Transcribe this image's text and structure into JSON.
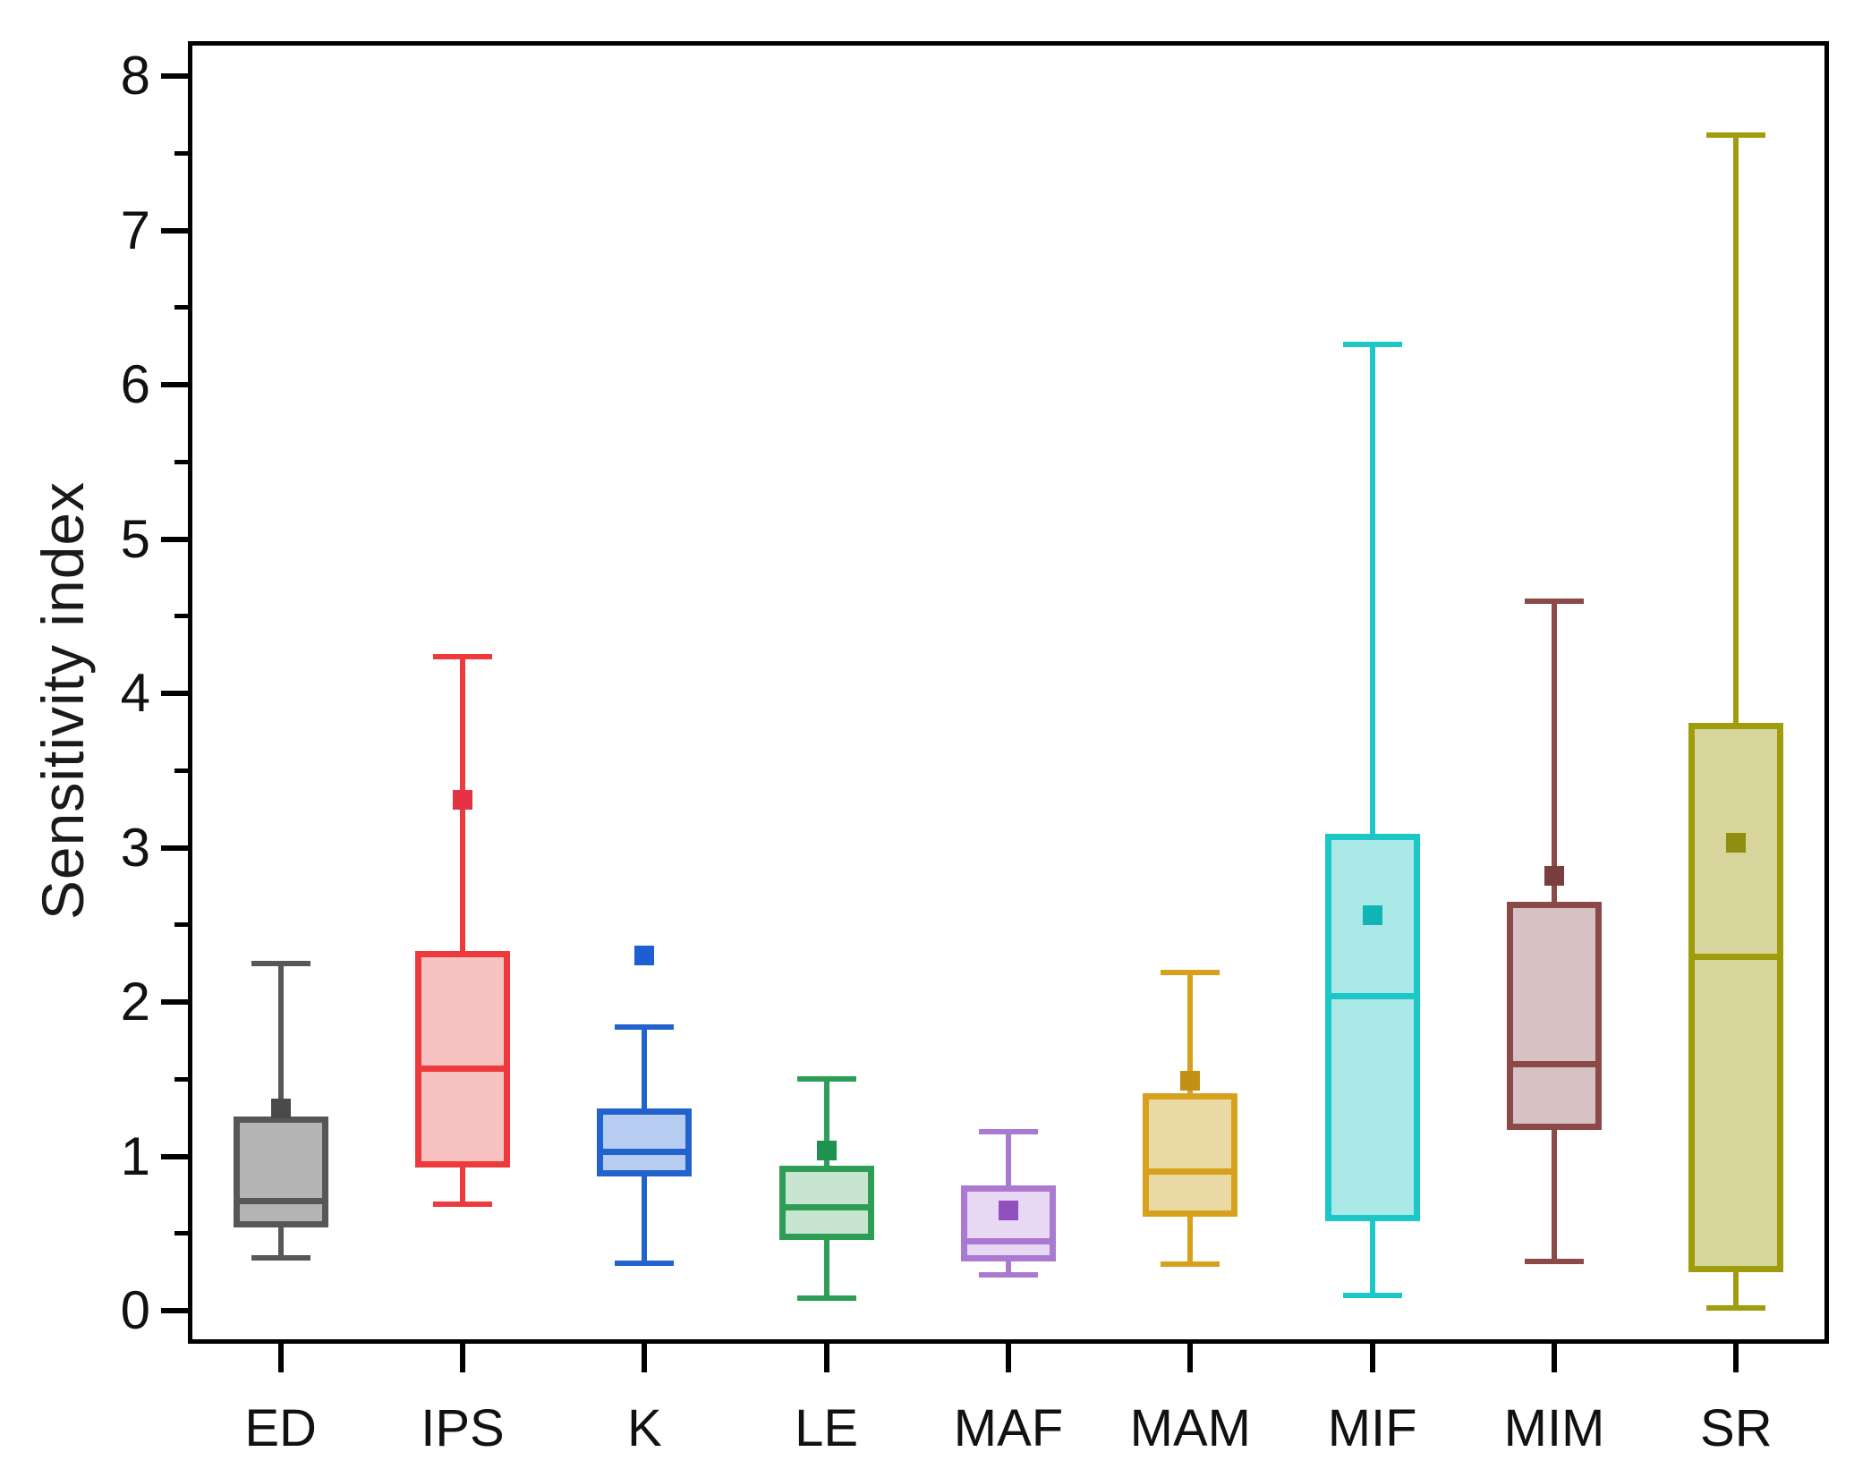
{
  "figure": {
    "background": "#ffffff",
    "frame_color": "#000000"
  },
  "chart_data": {
    "type": "box",
    "title": "",
    "xlabel": "",
    "ylabel": "Sensitivity index",
    "ylim": [
      0,
      8
    ],
    "yticks": [
      0,
      1,
      2,
      3,
      4,
      5,
      6,
      7,
      8
    ],
    "minor_tick_step": 0.5,
    "grid": false,
    "legend": false,
    "categories": [
      "ED",
      "IPS",
      "K",
      "LE",
      "MAF",
      "MAM",
      "MIF",
      "MIM",
      "SR"
    ],
    "series": [
      {
        "name": "ED",
        "whisker_low": 0.34,
        "q1": 0.54,
        "median": 0.71,
        "q3": 1.26,
        "whisker_high": 2.25,
        "mean": 1.31,
        "edge_color": "#575757",
        "fill_color": "#b4b4b4",
        "marker_color": "#4a4a4a"
      },
      {
        "name": "IPS",
        "whisker_low": 0.69,
        "q1": 0.93,
        "median": 1.57,
        "q3": 2.33,
        "whisker_high": 4.24,
        "mean": 3.31,
        "edge_color": "#ed3a3c",
        "fill_color": "#f8c2c2",
        "marker_color": "#e43345"
      },
      {
        "name": "K",
        "whisker_low": 0.31,
        "q1": 0.87,
        "median": 1.03,
        "q3": 1.31,
        "whisker_high": 1.84,
        "outlier": 2.3,
        "edge_color": "#2262cd",
        "fill_color": "#b7ccf1",
        "marker_color": "#1d5fd2"
      },
      {
        "name": "LE",
        "whisker_low": 0.08,
        "q1": 0.46,
        "median": 0.67,
        "q3": 0.94,
        "whisker_high": 1.5,
        "mean": 1.04,
        "edge_color": "#2e9e56",
        "fill_color": "#c7e5cf",
        "marker_color": "#1e9350"
      },
      {
        "name": "MAF",
        "whisker_low": 0.23,
        "q1": 0.32,
        "median": 0.45,
        "q3": 0.81,
        "whisker_high": 1.16,
        "mean": 0.65,
        "edge_color": "#aa79d1",
        "fill_color": "#e8d8f3",
        "marker_color": "#9050c0"
      },
      {
        "name": "MAM",
        "whisker_low": 0.3,
        "q1": 0.61,
        "median": 0.9,
        "q3": 1.41,
        "whisker_high": 2.19,
        "mean": 1.49,
        "edge_color": "#d7a11e",
        "fill_color": "#ebd9a5",
        "marker_color": "#c39016"
      },
      {
        "name": "MIF",
        "whisker_low": 0.1,
        "q1": 0.58,
        "median": 2.04,
        "q3": 3.09,
        "whisker_high": 6.26,
        "mean": 2.56,
        "edge_color": "#1dc7c7",
        "fill_color": "#abe8e8",
        "marker_color": "#12b5b5"
      },
      {
        "name": "MIM",
        "whisker_low": 0.32,
        "q1": 1.17,
        "median": 1.6,
        "q3": 2.65,
        "whisker_high": 4.6,
        "mean": 2.82,
        "edge_color": "#8b4a48",
        "fill_color": "#d6c2c2",
        "marker_color": "#7a3f3d"
      },
      {
        "name": "SR",
        "whisker_low": 0.02,
        "q1": 0.25,
        "median": 2.29,
        "q3": 3.81,
        "whisker_high": 7.62,
        "mean": 3.03,
        "edge_color": "#9f9d0e",
        "fill_color": "#d7d59b",
        "marker_color": "#8e8e10"
      }
    ]
  }
}
